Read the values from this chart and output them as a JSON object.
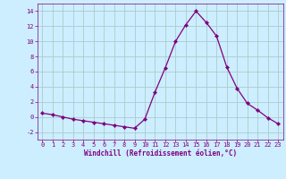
{
  "x": [
    0,
    1,
    2,
    3,
    4,
    5,
    6,
    7,
    8,
    9,
    10,
    11,
    12,
    13,
    14,
    15,
    16,
    17,
    18,
    19,
    20,
    21,
    22,
    23
  ],
  "y": [
    0.5,
    0.3,
    0.0,
    -0.3,
    -0.5,
    -0.7,
    -0.9,
    -1.1,
    -1.3,
    -1.5,
    -0.3,
    3.3,
    6.5,
    10.0,
    12.2,
    14.0,
    12.5,
    10.7,
    6.6,
    3.8,
    1.8,
    0.9,
    -0.1,
    -0.9
  ],
  "line_color": "#800080",
  "marker": "D",
  "marker_size": 2.2,
  "xlabel": "Windchill (Refroidissement éolien,°C)",
  "xlim": [
    -0.5,
    23.5
  ],
  "ylim": [
    -3,
    15
  ],
  "yticks": [
    -2,
    0,
    2,
    4,
    6,
    8,
    10,
    12,
    14
  ],
  "xticks": [
    0,
    1,
    2,
    3,
    4,
    5,
    6,
    7,
    8,
    9,
    10,
    11,
    12,
    13,
    14,
    15,
    16,
    17,
    18,
    19,
    20,
    21,
    22,
    23
  ],
  "bg_color": "#cceeff",
  "grid_color": "#aacccc",
  "label_color": "#800080",
  "tick_label_fontsize": 5.0,
  "xlabel_fontsize": 5.5,
  "linewidth": 0.9
}
